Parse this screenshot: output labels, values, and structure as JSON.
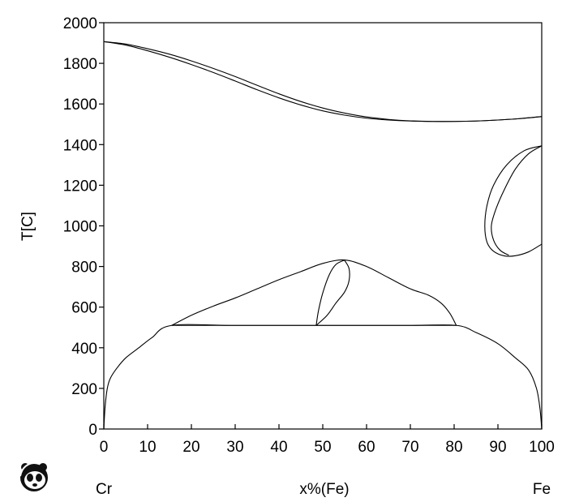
{
  "chart_data": {
    "type": "line",
    "title": "",
    "xlabel": "x%(Fe)",
    "ylabel": "T[C]",
    "x_end_labels": {
      "left": "Cr",
      "right": "Fe"
    },
    "xlim": [
      0,
      100
    ],
    "ylim": [
      0,
      2000
    ],
    "xticks": [
      "0",
      "10",
      "20",
      "30",
      "40",
      "50",
      "60",
      "70",
      "80",
      "90",
      "100"
    ],
    "yticks": [
      "0",
      "200",
      "400",
      "600",
      "800",
      "1000",
      "1200",
      "1400",
      "1600",
      "1800",
      "2000"
    ],
    "grid": false,
    "logo": "panda-logo",
    "series": [
      {
        "id": "liquidus",
        "values": [
          [
            0,
            1907
          ],
          [
            5,
            1895
          ],
          [
            10,
            1872
          ],
          [
            15,
            1845
          ],
          [
            20,
            1812
          ],
          [
            25,
            1775
          ],
          [
            30,
            1735
          ],
          [
            35,
            1692
          ],
          [
            40,
            1650
          ],
          [
            45,
            1612
          ],
          [
            50,
            1580
          ],
          [
            55,
            1555
          ],
          [
            60,
            1536
          ],
          [
            65,
            1524
          ],
          [
            70,
            1517
          ],
          [
            75,
            1514
          ],
          [
            80,
            1514
          ],
          [
            85,
            1516
          ],
          [
            90,
            1521
          ],
          [
            95,
            1528
          ],
          [
            100,
            1538
          ]
        ]
      },
      {
        "id": "solidus",
        "values": [
          [
            0,
            1907
          ],
          [
            5,
            1890
          ],
          [
            10,
            1862
          ],
          [
            15,
            1830
          ],
          [
            20,
            1794
          ],
          [
            25,
            1755
          ],
          [
            30,
            1713
          ],
          [
            35,
            1670
          ],
          [
            40,
            1630
          ],
          [
            45,
            1595
          ],
          [
            50,
            1566
          ],
          [
            55,
            1545
          ],
          [
            60,
            1530
          ],
          [
            65,
            1521
          ],
          [
            70,
            1516
          ],
          [
            75,
            1514
          ],
          [
            80,
            1514
          ],
          [
            85,
            1516
          ],
          [
            90,
            1521
          ],
          [
            95,
            1528
          ],
          [
            100,
            1538
          ]
        ]
      },
      {
        "id": "gamma-loop-outer",
        "values": [
          [
            100,
            1394
          ],
          [
            96,
            1370
          ],
          [
            92,
            1300
          ],
          [
            89,
            1200
          ],
          [
            87.5,
            1100
          ],
          [
            87,
            1000
          ],
          [
            87.5,
            920
          ],
          [
            89,
            875
          ],
          [
            91.5,
            852
          ],
          [
            94,
            853
          ],
          [
            97,
            872
          ],
          [
            100,
            910
          ]
        ]
      },
      {
        "id": "gamma-loop-inner",
        "values": [
          [
            100,
            1394
          ],
          [
            97,
            1355
          ],
          [
            94,
            1280
          ],
          [
            91.5,
            1180
          ],
          [
            89.5,
            1080
          ],
          [
            88.5,
            1000
          ],
          [
            89,
            930
          ],
          [
            90.5,
            880
          ],
          [
            92.5,
            855
          ]
        ]
      },
      {
        "id": "sigma-outer",
        "values": [
          [
            15.5,
            510
          ],
          [
            20,
            560
          ],
          [
            25,
            605
          ],
          [
            30,
            645
          ],
          [
            35,
            690
          ],
          [
            40,
            735
          ],
          [
            45,
            775
          ],
          [
            50,
            815
          ],
          [
            55,
            832
          ],
          [
            60,
            800
          ],
          [
            65,
            745
          ],
          [
            70,
            690
          ],
          [
            74,
            660
          ],
          [
            77,
            620
          ],
          [
            79,
            570
          ],
          [
            80.5,
            510
          ]
        ]
      },
      {
        "id": "sigma-lobe-right",
        "values": [
          [
            48.5,
            510
          ],
          [
            51,
            560
          ],
          [
            53,
            620
          ],
          [
            55,
            675
          ],
          [
            56,
            730
          ],
          [
            56,
            790
          ],
          [
            55,
            830
          ]
        ]
      },
      {
        "id": "sigma-lobe-left",
        "values": [
          [
            48.5,
            510
          ],
          [
            49,
            580
          ],
          [
            50,
            670
          ],
          [
            51.5,
            760
          ],
          [
            53,
            810
          ],
          [
            55,
            832
          ]
        ]
      },
      {
        "id": "eutectoid-line",
        "values": [
          [
            15.5,
            510
          ],
          [
            80.5,
            510
          ]
        ]
      },
      {
        "id": "miscibility-gap",
        "values": [
          [
            0,
            0
          ],
          [
            0.3,
            110
          ],
          [
            0.8,
            200
          ],
          [
            1.5,
            250
          ],
          [
            3,
            300
          ],
          [
            5,
            350
          ],
          [
            8,
            400
          ],
          [
            11,
            450
          ],
          [
            15.5,
            510
          ],
          [
            30,
            510
          ],
          [
            50,
            510
          ],
          [
            70,
            510
          ],
          [
            80.5,
            510
          ],
          [
            85,
            475
          ],
          [
            90,
            420
          ],
          [
            94,
            350
          ],
          [
            97,
            290
          ],
          [
            98.8,
            200
          ],
          [
            99.6,
            100
          ],
          [
            100,
            0
          ]
        ]
      }
    ]
  }
}
